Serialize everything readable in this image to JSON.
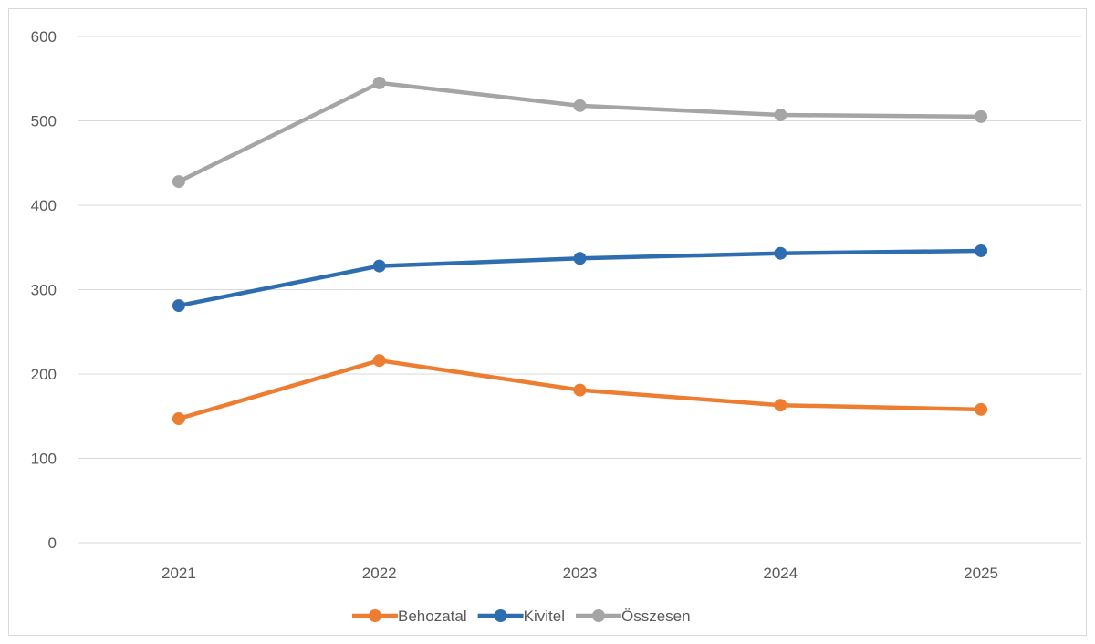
{
  "chart_data": {
    "type": "line",
    "title": "",
    "xlabel": "",
    "ylabel": "",
    "categories": [
      "2021",
      "2022",
      "2023",
      "2024",
      "2025"
    ],
    "ylim": [
      0,
      600
    ],
    "yticks": [
      0,
      100,
      200,
      300,
      400,
      500,
      600
    ],
    "grid": "horizontal",
    "legend_position": "bottom",
    "series": [
      {
        "name": "Behozatal",
        "color": "#ED7D31",
        "values": [
          147,
          216,
          181,
          163,
          158
        ]
      },
      {
        "name": "Kivitel",
        "color": "#2E6DB0",
        "values": [
          281,
          328,
          337,
          343,
          346
        ]
      },
      {
        "name": "Összesen",
        "color": "#A5A5A5",
        "values": [
          428,
          545,
          518,
          507,
          505
        ]
      }
    ]
  }
}
